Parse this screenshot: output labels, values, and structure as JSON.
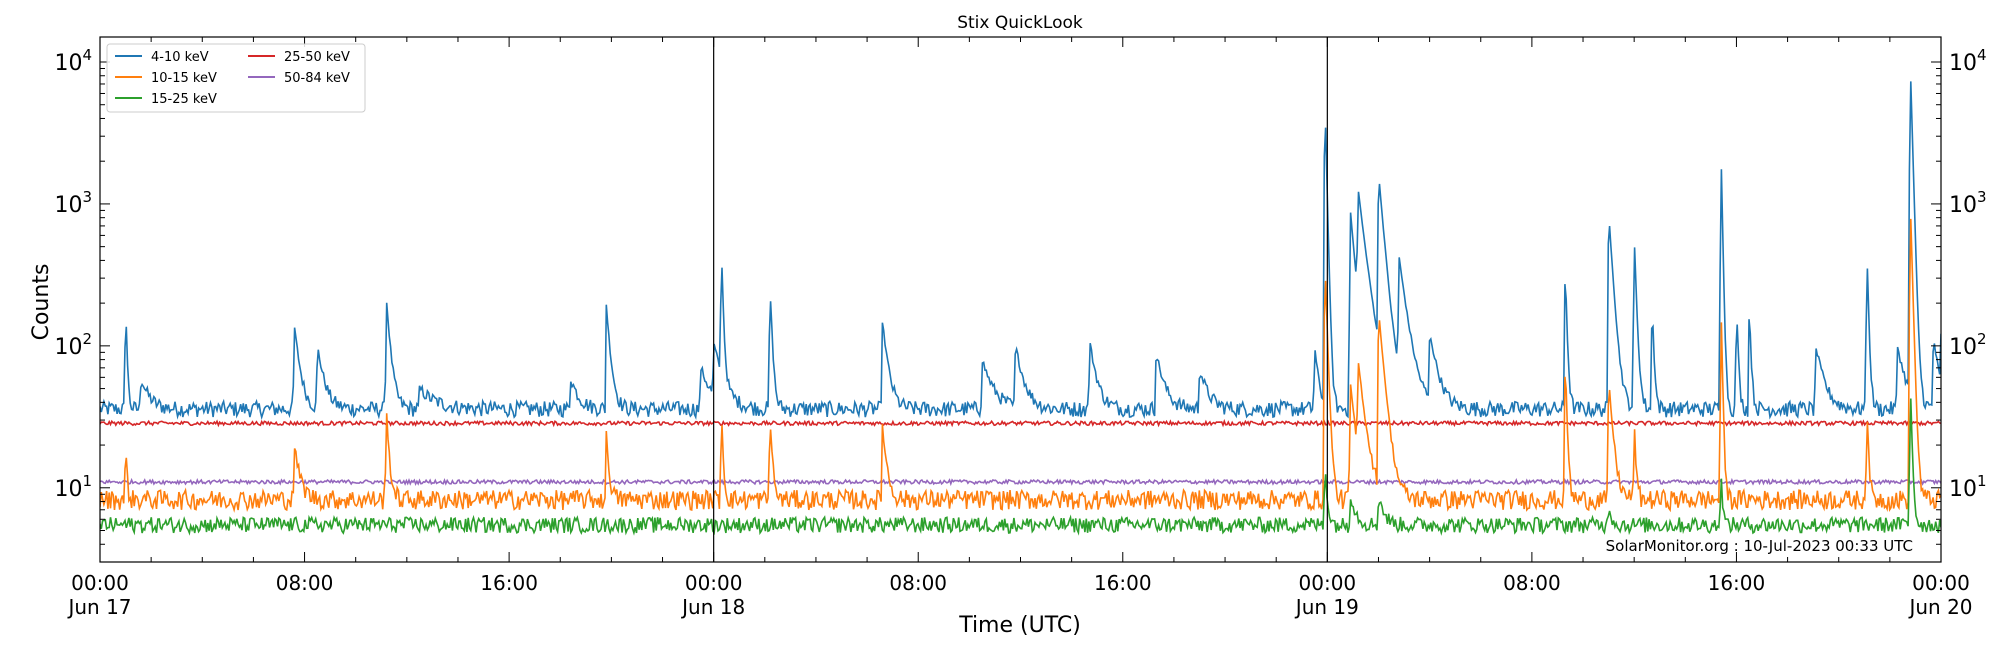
{
  "chart_data": {
    "type": "line",
    "title": "Stix QuickLook",
    "xlabel": "Time (UTC)",
    "ylabel": "Counts",
    "yscale": "log",
    "ylim": [
      3,
      15000
    ],
    "xlim_hours": [
      0,
      72
    ],
    "x_ticks": [
      {
        "hour": 0,
        "time": "00:00",
        "date": "Jun 17"
      },
      {
        "hour": 8,
        "time": "08:00",
        "date": ""
      },
      {
        "hour": 16,
        "time": "16:00",
        "date": ""
      },
      {
        "hour": 24,
        "time": "00:00",
        "date": "Jun 18"
      },
      {
        "hour": 32,
        "time": "08:00",
        "date": ""
      },
      {
        "hour": 40,
        "time": "16:00",
        "date": ""
      },
      {
        "hour": 48,
        "time": "00:00",
        "date": "Jun 19"
      },
      {
        "hour": 56,
        "time": "08:00",
        "date": ""
      },
      {
        "hour": 64,
        "time": "16:00",
        "date": ""
      },
      {
        "hour": 72,
        "time": "00:00",
        "date": "Jun 20"
      }
    ],
    "y_ticks": [
      {
        "value": 10,
        "base": "10",
        "exp": "1"
      },
      {
        "value": 100,
        "base": "10",
        "exp": "2"
      },
      {
        "value": 1000,
        "base": "10",
        "exp": "3"
      },
      {
        "value": 10000,
        "base": "10",
        "exp": "4"
      }
    ],
    "day_boundaries_hours": [
      24,
      48
    ],
    "legend_position": "top-left",
    "grid": false,
    "series": [
      {
        "name": "4-10 keV",
        "color": "#1f77b4",
        "baseline": 36,
        "noise": 0.08,
        "peaks": [
          [
            1.0,
            220,
            0.05
          ],
          [
            1.6,
            60,
            0.3
          ],
          [
            7.6,
            140,
            0.2
          ],
          [
            8.5,
            100,
            0.25
          ],
          [
            11.2,
            215,
            0.15
          ],
          [
            12.5,
            50,
            0.6
          ],
          [
            18.4,
            60,
            0.3
          ],
          [
            19.8,
            195,
            0.15
          ],
          [
            23.5,
            70,
            0.4
          ],
          [
            24.0,
            95,
            0.35
          ],
          [
            24.3,
            490,
            0.06
          ],
          [
            26.2,
            280,
            0.08
          ],
          [
            30.6,
            150,
            0.2
          ],
          [
            34.5,
            80,
            0.4
          ],
          [
            35.8,
            100,
            0.3
          ],
          [
            38.7,
            110,
            0.25
          ],
          [
            41.3,
            90,
            0.3
          ],
          [
            43.0,
            70,
            0.3
          ],
          [
            47.5,
            100,
            0.15
          ],
          [
            47.9,
            5800,
            0.06
          ],
          [
            48.9,
            900,
            0.2
          ],
          [
            49.2,
            1100,
            0.3
          ],
          [
            50.0,
            1600,
            0.2
          ],
          [
            50.8,
            400,
            0.3
          ],
          [
            52.0,
            120,
            0.3
          ],
          [
            57.3,
            400,
            0.06
          ],
          [
            59.0,
            900,
            0.15
          ],
          [
            60.0,
            600,
            0.08
          ],
          [
            60.7,
            230,
            0.06
          ],
          [
            63.4,
            2200,
            0.05
          ],
          [
            64.0,
            210,
            0.06
          ],
          [
            64.5,
            215,
            0.06
          ],
          [
            67.1,
            100,
            0.3
          ],
          [
            69.1,
            480,
            0.06
          ],
          [
            70.3,
            100,
            0.3
          ],
          [
            70.8,
            9300,
            0.07
          ],
          [
            71.7,
            120,
            0.2
          ],
          [
            72.0,
            100,
            0.2
          ]
        ]
      },
      {
        "name": "10-15 keV",
        "color": "#ff7f0e",
        "baseline": 8.3,
        "noise": 0.1,
        "peaks": [
          [
            1.0,
            22,
            0.05
          ],
          [
            7.6,
            20,
            0.2
          ],
          [
            11.2,
            36,
            0.1
          ],
          [
            19.8,
            24,
            0.1
          ],
          [
            24.3,
            38,
            0.06
          ],
          [
            26.2,
            35,
            0.08
          ],
          [
            30.6,
            28,
            0.15
          ],
          [
            47.9,
            420,
            0.08
          ],
          [
            48.9,
            55,
            0.2
          ],
          [
            49.2,
            70,
            0.25
          ],
          [
            50.0,
            180,
            0.2
          ],
          [
            57.3,
            90,
            0.06
          ],
          [
            59.0,
            60,
            0.15
          ],
          [
            60.0,
            30,
            0.06
          ],
          [
            63.4,
            180,
            0.05
          ],
          [
            69.1,
            38,
            0.06
          ],
          [
            70.8,
            1000,
            0.07
          ]
        ]
      },
      {
        "name": "15-25 keV",
        "color": "#2ca02c",
        "baseline": 5.5,
        "noise": 0.08,
        "peaks": [
          [
            47.9,
            16,
            0.08
          ],
          [
            48.9,
            9,
            0.2
          ],
          [
            50.0,
            9,
            0.2
          ],
          [
            59.0,
            8,
            0.1
          ],
          [
            63.4,
            14,
            0.05
          ],
          [
            70.8,
            55,
            0.06
          ]
        ]
      },
      {
        "name": "25-50 keV",
        "color": "#d62728",
        "baseline": 28.5,
        "noise": 0.02,
        "peaks": []
      },
      {
        "name": "50-84 keV",
        "color": "#9467bd",
        "baseline": 11,
        "noise": 0.02,
        "peaks": []
      }
    ],
    "watermark": "SolarMonitor.org : 10-Jul-2023 00:33 UTC"
  }
}
